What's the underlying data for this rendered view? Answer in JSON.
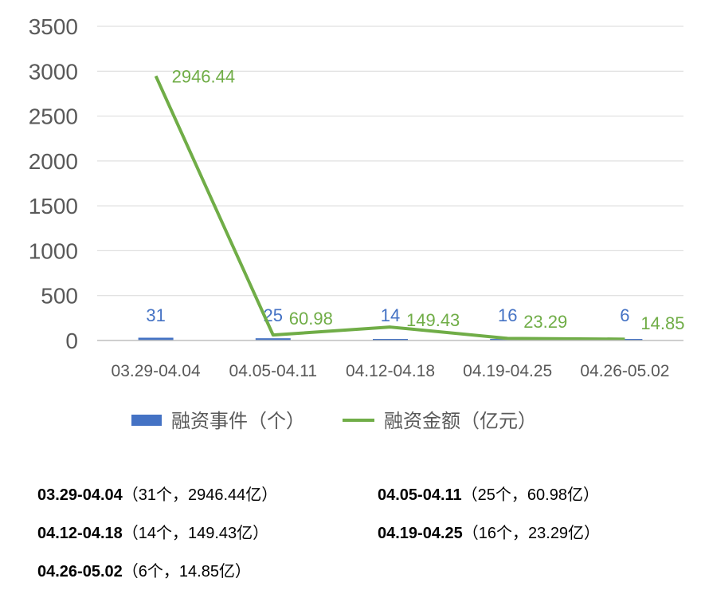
{
  "chart_data": {
    "type": "bar",
    "categories": [
      "03.29-04.04",
      "04.05-04.11",
      "04.12-04.18",
      "04.19-04.25",
      "04.26-05.02"
    ],
    "series": [
      {
        "name": "融资事件（个）",
        "type": "bar",
        "color": "#4472c4",
        "values": [
          31,
          25,
          14,
          16,
          6
        ],
        "labels": [
          "31",
          "25",
          "14",
          "16",
          "6"
        ]
      },
      {
        "name": "融资金额（亿元）",
        "type": "line",
        "color": "#70ad47",
        "values": [
          2946.44,
          60.98,
          149.43,
          23.29,
          14.85
        ],
        "labels": [
          "2946.44",
          "60.98",
          "149.43",
          "23.29",
          "14.85"
        ]
      }
    ],
    "yticks": [
      "0",
      "500",
      "1000",
      "1500",
      "2000",
      "2500",
      "3000",
      "3500"
    ],
    "ylim": [
      0,
      3500
    ],
    "grid": true,
    "legend": "bottom"
  },
  "notes": [
    {
      "period": "03.29-04.04",
      "detail": "（31个，2946.44亿）"
    },
    {
      "period": "04.05-04.11",
      "detail": "（25个，60.98亿）"
    },
    {
      "period": "04.12-04.18",
      "detail": "（14个，149.43亿）"
    },
    {
      "period": "04.19-04.25",
      "detail": "（16个，23.29亿）"
    },
    {
      "period": "04.26-05.02",
      "detail": "（6个，14.85亿）"
    }
  ]
}
